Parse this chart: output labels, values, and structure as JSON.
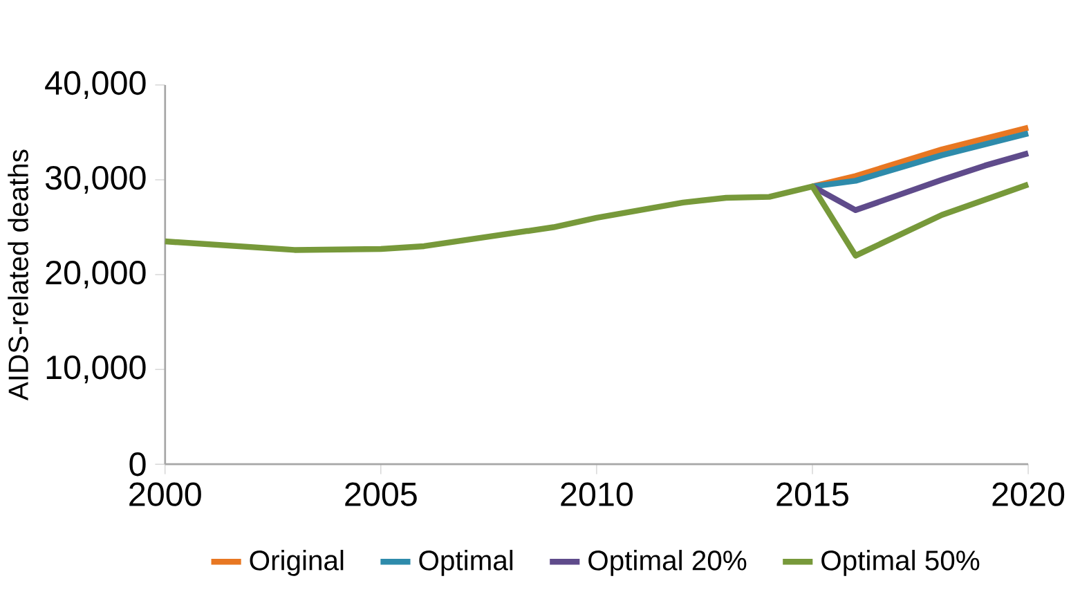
{
  "chart_data": {
    "type": "line",
    "ylabel": "AIDS-related deaths",
    "xlim": [
      2000,
      2020
    ],
    "xticks": [
      2000,
      2005,
      2010,
      2015,
      2020
    ],
    "ylim": [
      0,
      40000
    ],
    "yticks": [
      {
        "value": 0,
        "label": "0"
      },
      {
        "value": 10000,
        "label": "10,000"
      },
      {
        "value": 20000,
        "label": "20,000"
      },
      {
        "value": 30000,
        "label": "30,000"
      },
      {
        "value": 40000,
        "label": "40,000"
      }
    ],
    "grid": false,
    "legend": "bottom",
    "marker": "none",
    "line_style": "solid",
    "series": [
      {
        "name": "Original",
        "color": "#e87722",
        "x": [
          2015,
          2016,
          2018,
          2020
        ],
        "values": [
          29300,
          30400,
          33200,
          35500
        ]
      },
      {
        "name": "Optimal",
        "color": "#2e8bab",
        "x": [
          2015,
          2016,
          2018,
          2020
        ],
        "values": [
          29300,
          29900,
          32600,
          34900
        ]
      },
      {
        "name": "Optimal 20%",
        "color": "#5f4b8b",
        "x": [
          2015,
          2016,
          2018,
          2019,
          2020
        ],
        "values": [
          29300,
          26800,
          30000,
          31500,
          32800
        ]
      },
      {
        "name": "Optimal 50%",
        "color": "#77993a",
        "x": [
          2000,
          2003,
          2005,
          2006,
          2009,
          2010,
          2012,
          2013,
          2014,
          2015,
          2016,
          2018,
          2020
        ],
        "values": [
          23500,
          22600,
          22700,
          23000,
          25000,
          26000,
          27600,
          28100,
          28200,
          29300,
          22000,
          26300,
          29500
        ]
      }
    ]
  }
}
